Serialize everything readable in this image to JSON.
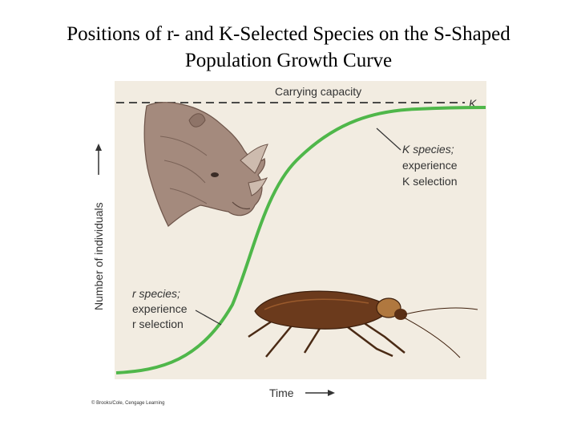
{
  "title": {
    "line1": "Positions of r- and K-Selected Species on the S-Shaped",
    "line2": "Population Growth Curve"
  },
  "labels": {
    "carrying_capacity": "Carrying capacity",
    "k_symbol": "K",
    "k_species": [
      "K species;",
      "experience",
      "K selection"
    ],
    "r_species": [
      "r species;",
      "experience",
      "r selection"
    ],
    "y_axis": "Number of individuals",
    "x_axis": "Time"
  },
  "credit": "© Brooks/Cole, Cengage Learning",
  "colors": {
    "panel_bg": "#f2ece1",
    "curve": "#4fb74a",
    "dashed_line": "#333333",
    "text": "#333333"
  },
  "icons": [
    "rhinoceros-illustration",
    "cockroach-illustration",
    "up-arrow",
    "right-arrow"
  ]
}
